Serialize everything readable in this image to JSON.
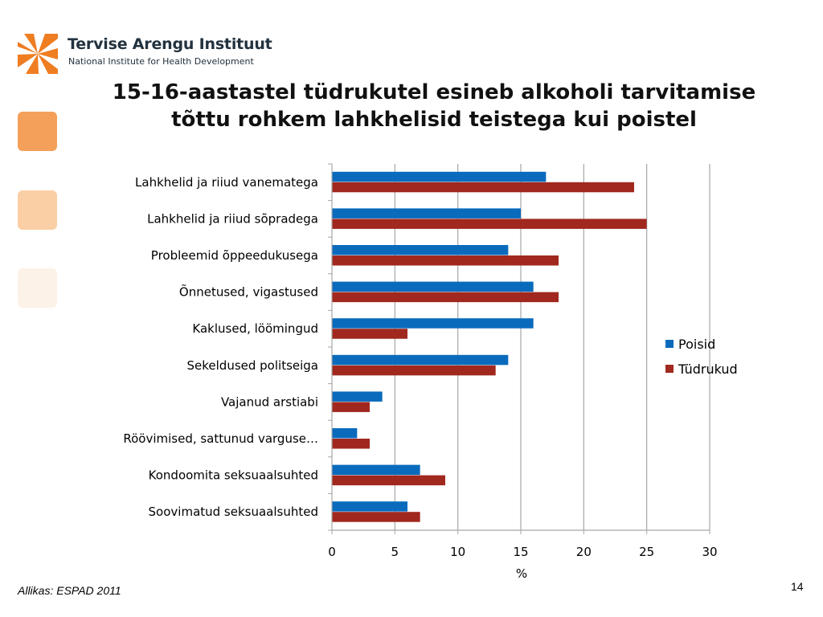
{
  "logo": {
    "name": "Tervise Arengu Instituut",
    "subtitle": "National Institute for Health Development",
    "brand_color": "#ef7d22"
  },
  "slide": {
    "title_line1": "15-16-aastastel tüdrukutel esineb alkoholi tarvitamise",
    "title_line2": "tõttu rohkem lahkhelisid teistega kui poistel",
    "source": "Allikas: ESPAD 2011",
    "page_number": "14"
  },
  "chart_data": {
    "type": "bar",
    "orientation": "horizontal",
    "title": "15-16-aastastel tüdrukutel esineb alkoholi tarvitamise tõttu rohkem lahkhelisid teistega kui poistel",
    "categories": [
      "Lahkhelid ja riiud vanematega",
      "Lahkhelid ja riiud sõpradega",
      "Probleemid õppeedukusega",
      "Õnnetused, vigastused",
      "Kaklused, löömingud",
      "Sekeldused politseiga",
      "Vajanud arstiabi",
      "Röövimised, sattunud varguse…",
      "Kondoomita seksuaalsuhted",
      "Soovimatud seksuaalsuhted"
    ],
    "series": [
      {
        "name": "Poisid",
        "color": "#0a6bbd",
        "values": [
          17,
          15,
          14,
          16,
          16,
          14,
          4,
          2,
          7,
          6
        ]
      },
      {
        "name": "Tüdrukud",
        "color": "#a0281e",
        "values": [
          24,
          25,
          18,
          18,
          6,
          13,
          3,
          3,
          9,
          7
        ]
      }
    ],
    "xlabel": "%",
    "ylabel": "",
    "xlim": [
      0,
      30
    ],
    "xticks": [
      0,
      5,
      10,
      15,
      20,
      25,
      30
    ],
    "grid": "vertical",
    "legend": "right"
  }
}
